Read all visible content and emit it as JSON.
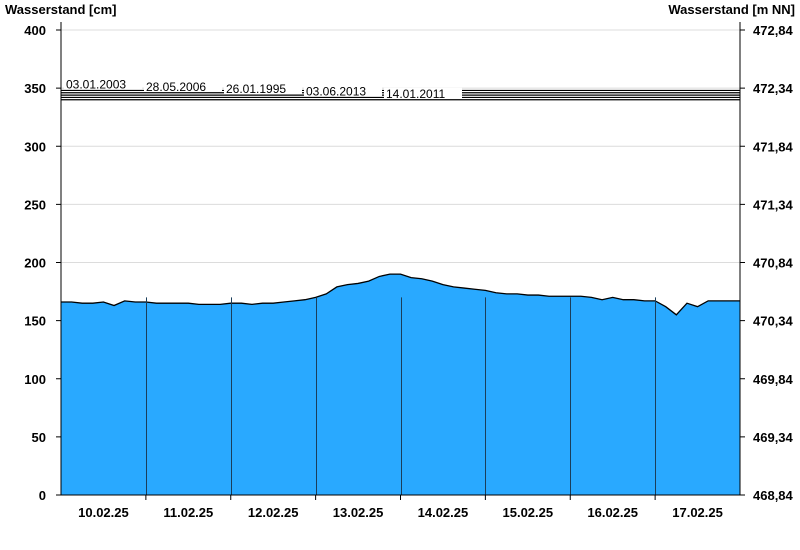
{
  "chart_data": {
    "type": "area",
    "ylabel_left": "Wasserstand [cm]",
    "ylabel_right": "Wasserstand [m NN]",
    "ylim": [
      0,
      400
    ],
    "yticks": [
      0,
      50,
      100,
      150,
      200,
      250,
      300,
      350,
      400
    ],
    "yticks_right": [
      "468,84",
      "469,34",
      "469,84",
      "470,34",
      "470,84",
      "471,34",
      "471,84",
      "472,34",
      "472,84"
    ],
    "xlabels": [
      "10.02.25",
      "11.02.25",
      "12.02.25",
      "13.02.25",
      "14.02.25",
      "15.02.25",
      "16.02.25",
      "17.02.25"
    ],
    "grid": true,
    "fill_color": "#29a9ff",
    "series": [
      {
        "interval_hours": 3,
        "values": [
          166,
          166,
          165,
          165,
          166,
          163,
          167,
          166,
          166,
          165,
          165,
          165,
          165,
          164,
          164,
          164,
          165,
          165,
          164,
          165,
          165,
          166,
          167,
          168,
          170,
          173,
          179,
          181,
          182,
          184,
          188,
          190,
          190,
          187,
          186,
          184,
          181,
          179,
          178,
          177,
          176,
          174,
          173,
          173,
          172,
          172,
          171,
          171,
          171,
          171,
          170,
          168,
          170,
          168,
          168,
          167,
          167,
          162,
          155,
          165,
          162,
          167,
          167,
          167,
          167
        ]
      }
    ],
    "historic_levels": [
      {
        "label": "03.01.2003",
        "value": 348
      },
      {
        "label": "28.05.2006",
        "value": 346
      },
      {
        "label": "26.01.1995",
        "value": 344
      },
      {
        "label": "03.06.2013",
        "value": 342
      },
      {
        "label": "14.01.2011",
        "value": 340
      }
    ]
  }
}
